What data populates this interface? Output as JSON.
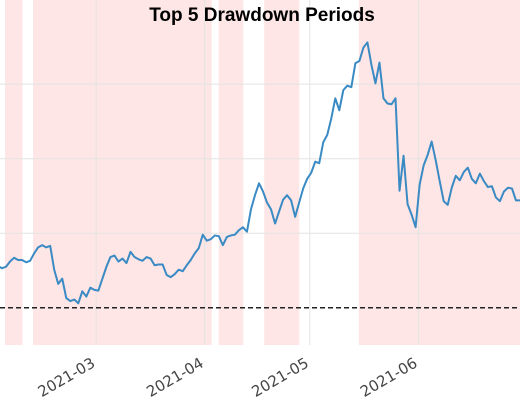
{
  "chart_data": {
    "type": "line",
    "title": "Top 5 Drawdown Periods",
    "xlabel": "",
    "ylabel": "",
    "x_start": "2021-02-01",
    "x_tick_labels": [
      "2021-03",
      "2021-04",
      "2021-05",
      "2021-06"
    ],
    "x_tick_dates": [
      "2021-03-01",
      "2021-04-01",
      "2021-05-01",
      "2021-06-01"
    ],
    "x_range": [
      "2021-02-01",
      "2021-06-30"
    ],
    "y_range": [
      -5,
      37
    ],
    "grid": true,
    "baseline": 0,
    "drawdown_periods": [
      {
        "start": "2021-02-03",
        "end": "2021-02-08"
      },
      {
        "start": "2021-02-11",
        "end": "2021-04-03"
      },
      {
        "start": "2021-04-05",
        "end": "2021-04-12"
      },
      {
        "start": "2021-04-18",
        "end": "2021-04-28"
      },
      {
        "start": "2021-05-15",
        "end": "2021-06-30"
      }
    ],
    "series": [
      {
        "values": [
          5.6,
          5.3,
          5.5,
          6.2,
          6.7,
          6.4,
          6.4,
          6.1,
          6.3,
          7.3,
          8.1,
          8.4,
          8.1,
          8.3,
          5.1,
          3.2,
          3.9,
          1.3,
          0.9,
          1.1,
          0.6,
          2.2,
          1.5,
          2.7,
          2.4,
          2.3,
          3.9,
          5.5,
          6.8,
          7.0,
          6.2,
          6.6,
          6.0,
          7.5,
          6.8,
          6.5,
          6.3,
          6.8,
          6.6,
          5.7,
          5.8,
          5.8,
          4.4,
          4.1,
          4.5,
          5.1,
          4.9,
          5.7,
          6.4,
          7.3,
          8.0,
          9.8,
          9.0,
          9.2,
          9.7,
          9.6,
          8.4,
          9.5,
          9.7,
          9.8,
          10.4,
          10.8,
          10.2,
          13.2,
          15.1,
          16.7,
          15.6,
          14.1,
          13.2,
          11.3,
          12.9,
          14.5,
          15.1,
          14.4,
          12.2,
          14.1,
          16.0,
          17.3,
          18.1,
          19.6,
          19.4,
          22.2,
          23.2,
          25.4,
          28.1,
          26.5,
          29.2,
          29.8,
          29.6,
          32.8,
          33.1,
          34.9,
          35.6,
          32.6,
          30.1,
          32.9,
          28.1,
          27.4,
          27.3,
          28.1,
          15.7,
          20.4,
          13.9,
          12.5,
          10.8,
          16.5,
          19.1,
          20.5,
          22.3,
          19.8,
          17.0,
          14.3,
          13.8,
          16.1,
          17.7,
          17.1,
          18.2,
          18.8,
          17.3,
          16.7,
          18.0,
          17.0,
          16.2,
          16.3,
          14.8,
          14.3,
          15.6,
          16.1,
          16.0,
          14.4,
          14.4
        ]
      }
    ]
  }
}
